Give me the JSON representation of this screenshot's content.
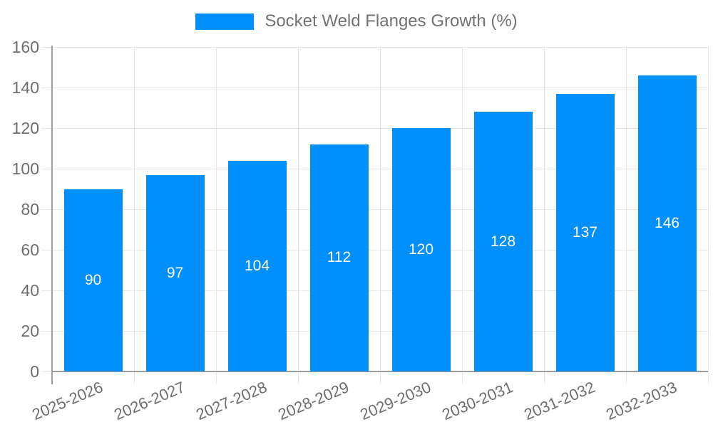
{
  "chart_data": {
    "type": "bar",
    "legend_label": "Socket Weld Flanges Growth (%)",
    "legend_position": "top-center",
    "categories": [
      "2025-2026",
      "2026-2027",
      "2027-2028",
      "2028-2029",
      "2029-2030",
      "2030-2031",
      "2031-2032",
      "2032-2033"
    ],
    "values": [
      90,
      97,
      104,
      112,
      120,
      128,
      137,
      146
    ],
    "value_labels": [
      "90",
      "97",
      "104",
      "112",
      "120",
      "128",
      "137",
      "146"
    ],
    "ytick_labels": [
      "0",
      "20",
      "40",
      "60",
      "80",
      "100",
      "120",
      "140",
      "160"
    ],
    "ylim": [
      0,
      160
    ],
    "ytick_step": 20,
    "grid": "horizontal and vertical, light gray, ticks overshoot axes",
    "xlabel": "",
    "ylabel": "",
    "colors": {
      "bar": "#008FFB",
      "grid": "#e7e7e7",
      "axis": "#9e9e9e",
      "tick_label": "#6e6e6e",
      "value_label": "#ffffff",
      "legend_text": "#737373",
      "background": "#ffffff"
    }
  }
}
